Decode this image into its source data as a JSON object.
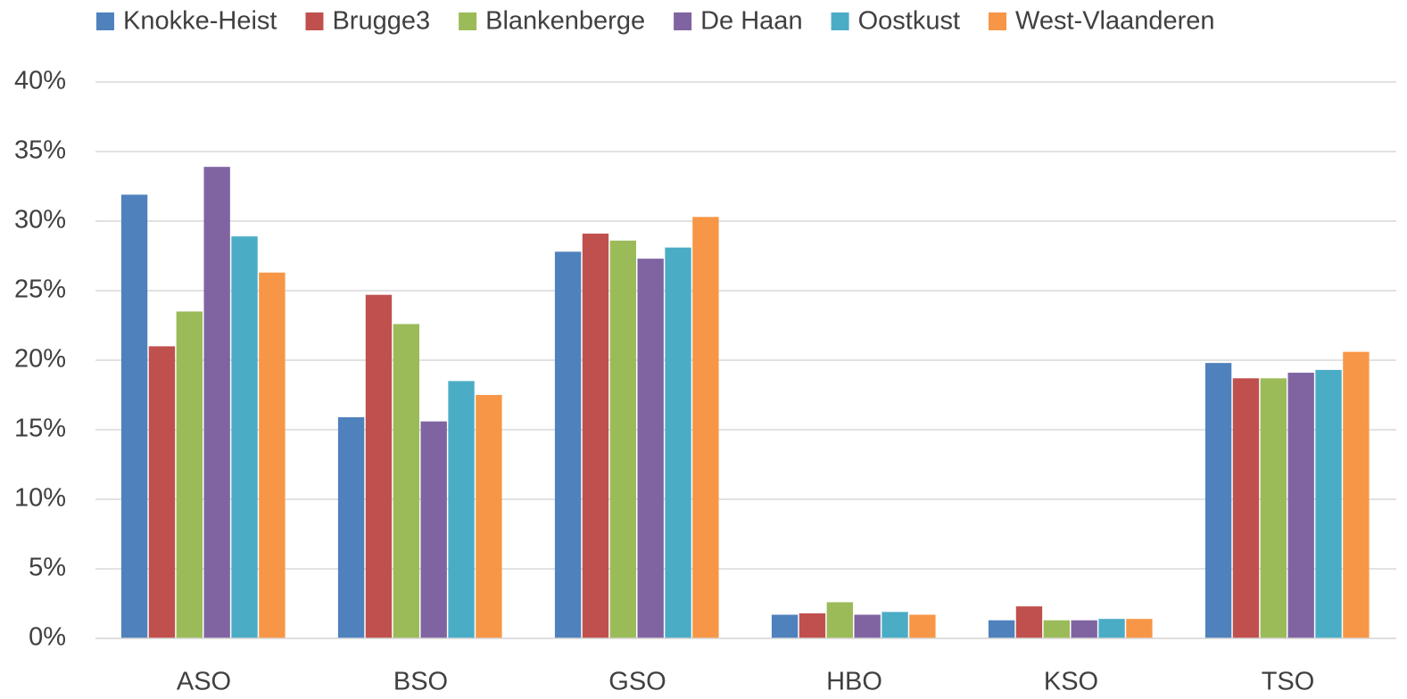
{
  "chart_data": {
    "type": "bar",
    "categories": [
      "ASO",
      "BSO",
      "GSO",
      "HBO",
      "KSO",
      "TSO"
    ],
    "series": [
      {
        "name": "Knokke-Heist",
        "color": "#4f81bd",
        "values": [
          31.9,
          15.9,
          27.8,
          1.7,
          1.3,
          19.8
        ]
      },
      {
        "name": "Brugge3",
        "color": "#c0504d",
        "values": [
          21.0,
          24.7,
          29.1,
          1.8,
          2.3,
          18.7
        ]
      },
      {
        "name": "Blankenberge",
        "color": "#9bbb59",
        "values": [
          23.5,
          22.6,
          28.6,
          2.6,
          1.3,
          18.7
        ]
      },
      {
        "name": "De Haan",
        "color": "#8064a2",
        "values": [
          33.9,
          15.6,
          27.3,
          1.7,
          1.3,
          19.1
        ]
      },
      {
        "name": "Oostkust",
        "color": "#4bacc6",
        "values": [
          28.9,
          18.5,
          28.1,
          1.9,
          1.4,
          19.3
        ]
      },
      {
        "name": "West-Vlaanderen",
        "color": "#f79646",
        "values": [
          26.3,
          17.5,
          30.3,
          1.7,
          1.4,
          20.6
        ]
      }
    ],
    "ylim": [
      0,
      40
    ],
    "yticks": [
      {
        "value": 0,
        "label": "0%"
      },
      {
        "value": 5,
        "label": "5%"
      },
      {
        "value": 10,
        "label": "10%"
      },
      {
        "value": 15,
        "label": "15%"
      },
      {
        "value": 20,
        "label": "20%"
      },
      {
        "value": 25,
        "label": "25%"
      },
      {
        "value": 30,
        "label": "30%"
      },
      {
        "value": 35,
        "label": "35%"
      },
      {
        "value": 40,
        "label": "40%"
      }
    ],
    "grid": true,
    "legend": "top"
  }
}
